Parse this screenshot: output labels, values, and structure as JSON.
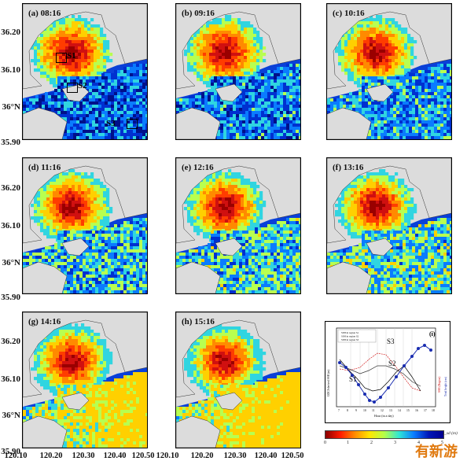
{
  "panels": [
    {
      "label": "(a) 08:16",
      "state": 0.0
    },
    {
      "label": "(b) 09:16",
      "state": 0.15
    },
    {
      "label": "(c) 10:16",
      "state": 0.3
    },
    {
      "label": "(d) 11:16",
      "state": 0.45
    },
    {
      "label": "(e) 12:16",
      "state": 0.55
    },
    {
      "label": "(f) 13:16",
      "state": 0.65
    },
    {
      "label": "(g) 14:16",
      "state": 0.8
    },
    {
      "label": "(h) 15:16",
      "state": 1.0
    }
  ],
  "regions": [
    "S1",
    "S2",
    "S3"
  ],
  "y_ticks": [
    "36.20",
    "36.10",
    "36°N",
    "35.90"
  ],
  "x_ticks": [
    "120.10",
    "120.20",
    "120.30",
    "120.40",
    "120.50"
  ],
  "panel_i": {
    "label": "(i)",
    "xlabel": "Hour (in a day)",
    "ylabel_left": "GOCI-derived SSH (m)",
    "ylabel_right": "Total height (cm)",
    "ylabel_right2": "SSH (Region)",
    "legend": [
      "SSH in region S1",
      "SSH in region S2",
      "SSH in region S3"
    ],
    "x_ticks": [
      "7",
      "8",
      "9",
      "10",
      "11",
      "12",
      "13",
      "14",
      "15",
      "16",
      "17",
      "18"
    ],
    "series_labels": [
      "S1",
      "S2",
      "S3"
    ]
  },
  "colorbar": {
    "ticks": [
      "0",
      "1",
      "2",
      "3",
      "4",
      "5"
    ],
    "unit": "z_sd (m)"
  },
  "colors": {
    "red": "#d01010",
    "orange": "#ff8a00",
    "yellow": "#ffe600",
    "cyan": "#30d5e0",
    "blue": "#0a5cff",
    "navy": "#00108a",
    "land": "#dcdcdc"
  },
  "watermark": "有新游"
}
